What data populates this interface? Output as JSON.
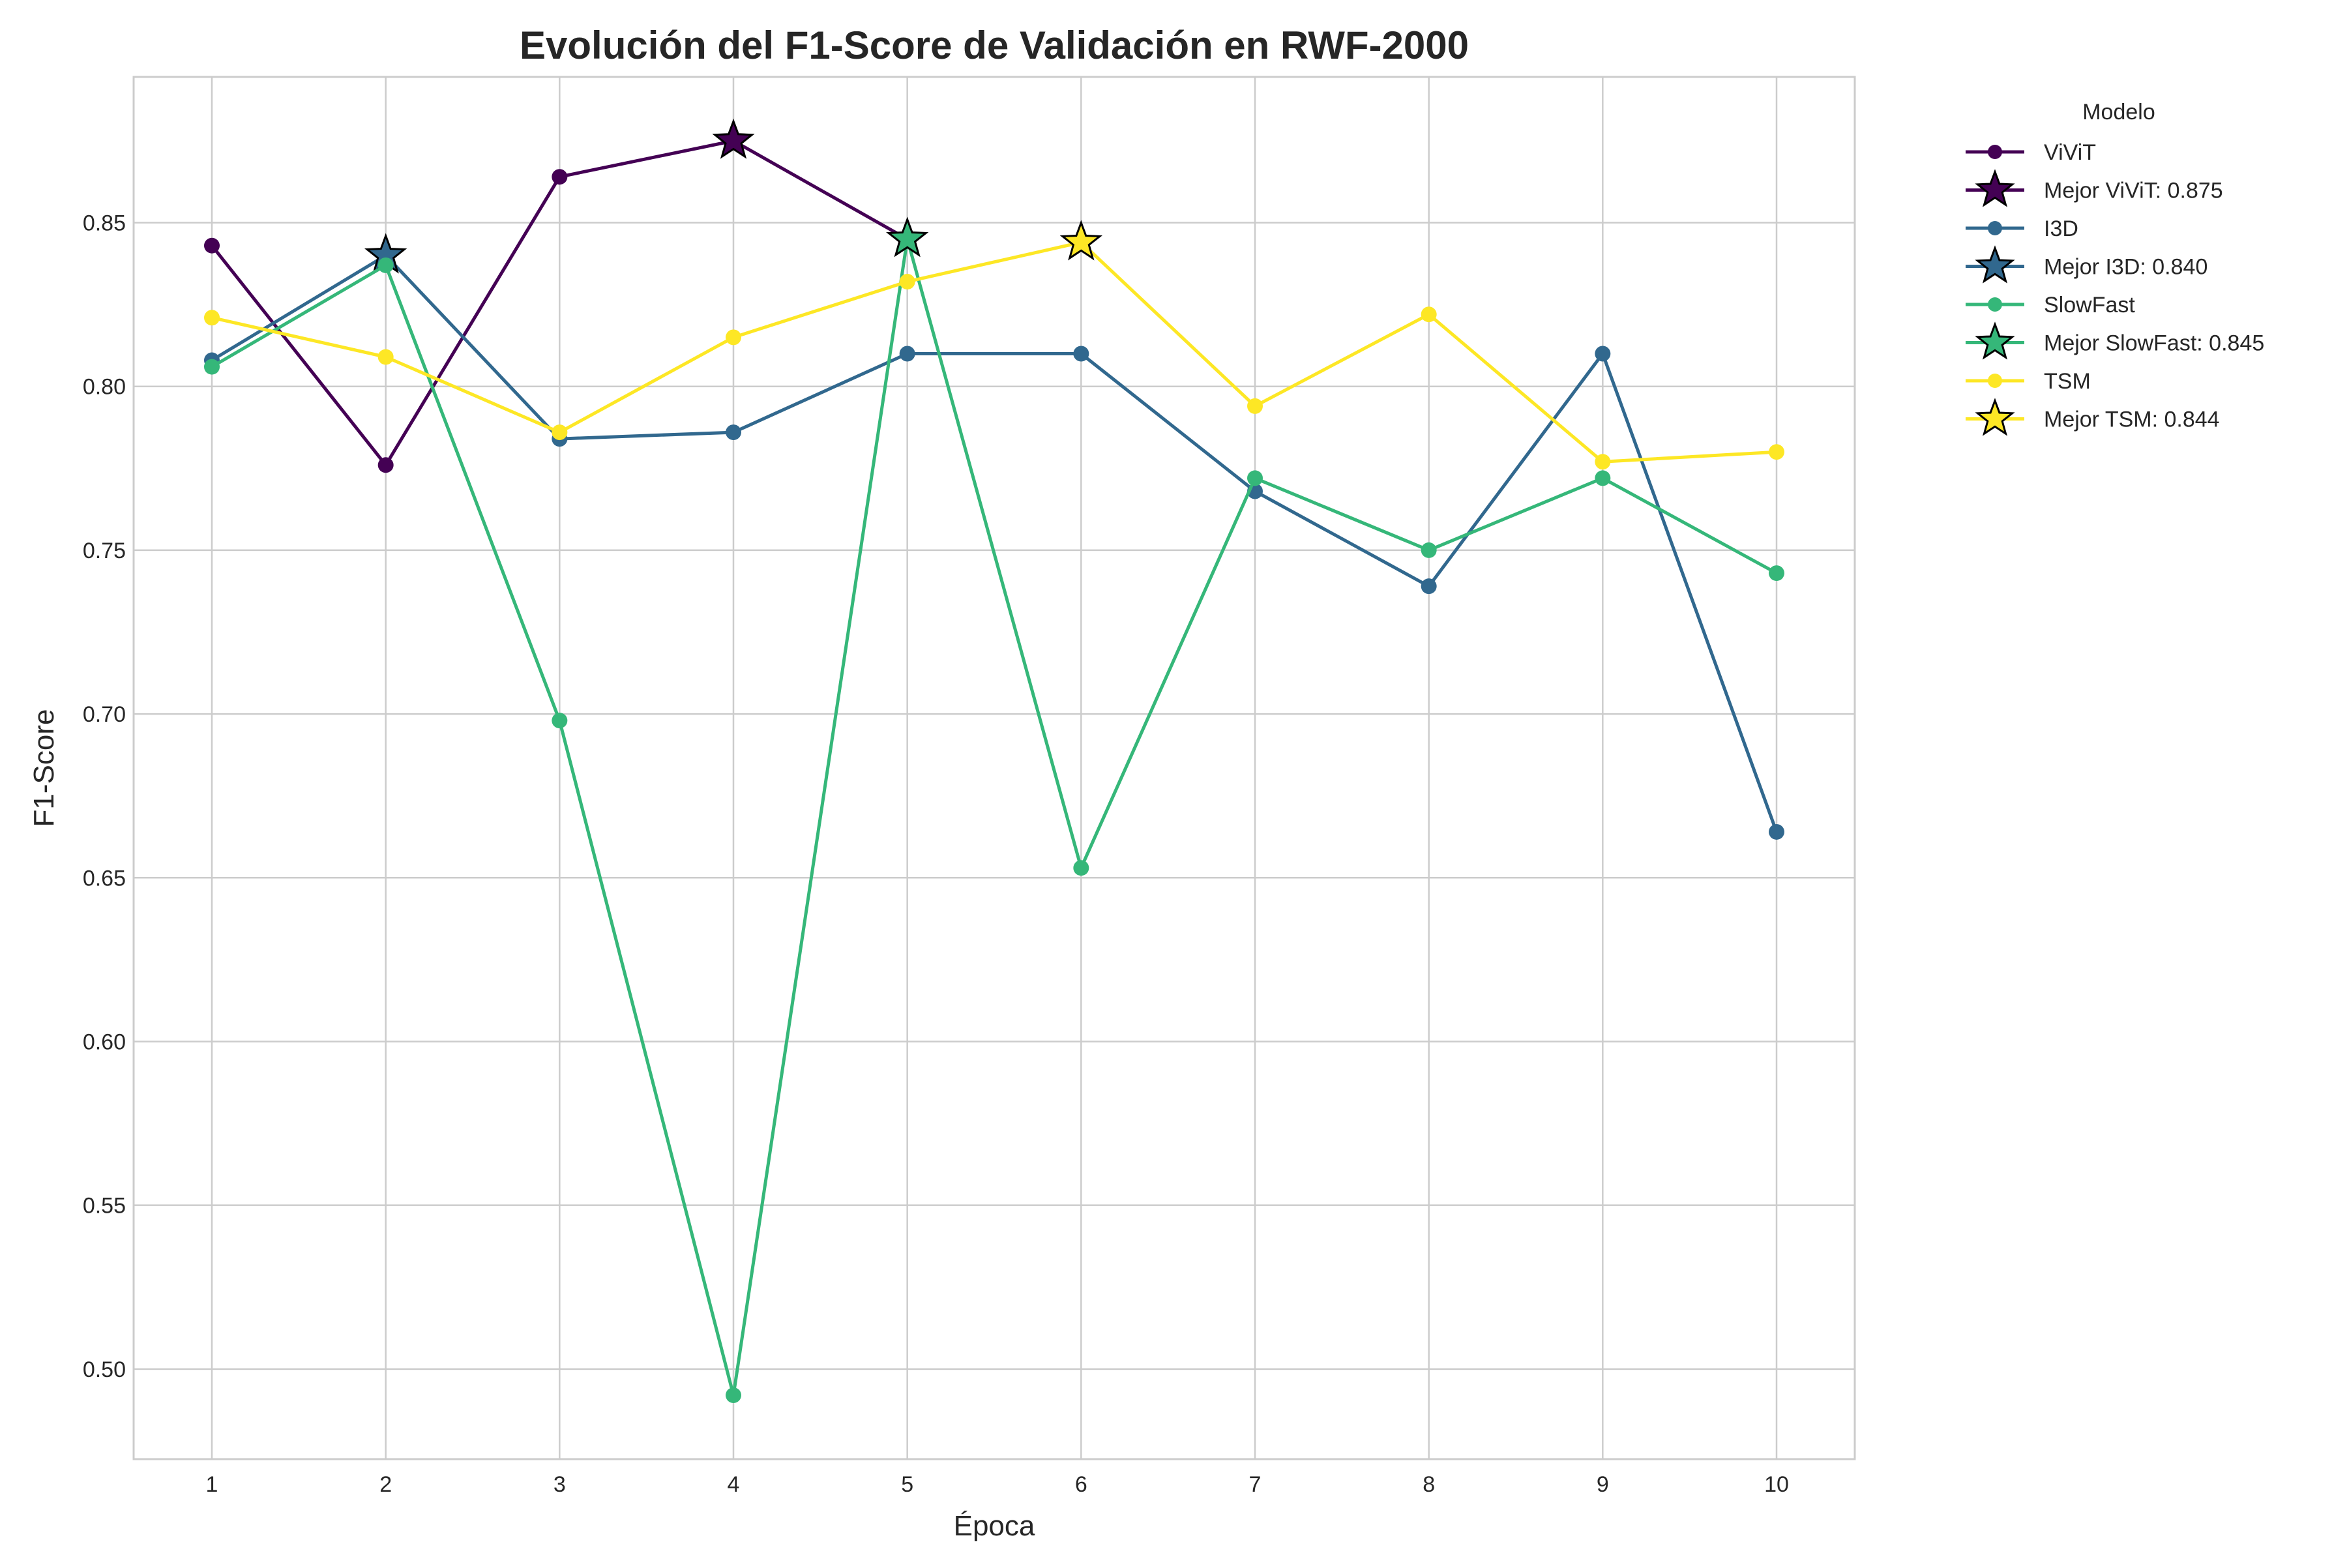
{
  "chart_data": {
    "type": "line",
    "title": "Evolución del F1-Score de Validación en RWF-2000",
    "xlabel": "Época",
    "ylabel": "F1-Score",
    "x": [
      1,
      2,
      3,
      4,
      5,
      6,
      7,
      8,
      9,
      10
    ],
    "xlim": [
      0.55,
      10.45
    ],
    "ylim": [
      0.4725,
      0.8945
    ],
    "yticks": [
      "0.50",
      "0.55",
      "0.60",
      "0.65",
      "0.70",
      "0.75",
      "0.80",
      "0.85"
    ],
    "xticks": [
      "1",
      "2",
      "3",
      "4",
      "5",
      "6",
      "7",
      "8",
      "9",
      "10"
    ],
    "grid": true,
    "legend": {
      "title": "Modelo",
      "placement": "outside-right"
    },
    "series": [
      {
        "name": "ViViT",
        "color": "#440154",
        "x": [
          1,
          2,
          3,
          4,
          5
        ],
        "values": [
          0.843,
          0.776,
          0.864,
          0.875,
          0.845
        ],
        "best": {
          "label": "Mejor ViViT: 0.875",
          "x": 4,
          "y": 0.875
        }
      },
      {
        "name": "I3D",
        "color": "#31688e",
        "x": [
          1,
          2,
          3,
          4,
          5,
          6,
          7,
          8,
          9,
          10
        ],
        "values": [
          0.808,
          0.84,
          0.784,
          0.786,
          0.81,
          0.81,
          0.768,
          0.739,
          0.81,
          0.664
        ],
        "best": {
          "label": "Mejor I3D: 0.840",
          "x": 2,
          "y": 0.84
        }
      },
      {
        "name": "SlowFast",
        "color": "#35b779",
        "x": [
          1,
          2,
          3,
          4,
          5,
          6,
          7,
          8,
          9,
          10
        ],
        "values": [
          0.806,
          0.837,
          0.698,
          0.492,
          0.845,
          0.653,
          0.772,
          0.75,
          0.772,
          0.743
        ],
        "best": {
          "label": "Mejor SlowFast: 0.845",
          "x": 5,
          "y": 0.845
        }
      },
      {
        "name": "TSM",
        "color": "#fde725",
        "x": [
          1,
          2,
          3,
          4,
          5,
          6,
          7,
          8,
          9,
          10
        ],
        "values": [
          0.821,
          0.809,
          0.786,
          0.815,
          0.832,
          0.844,
          0.794,
          0.822,
          0.777,
          0.78
        ],
        "best": {
          "label": "Mejor TSM: 0.844",
          "x": 6,
          "y": 0.844
        }
      }
    ]
  }
}
